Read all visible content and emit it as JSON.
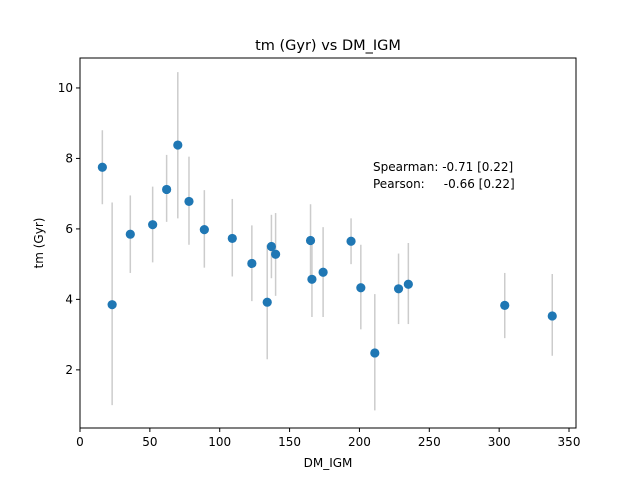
{
  "chart_data": {
    "type": "scatter",
    "title": "tm (Gyr) vs DM_IGM",
    "xlabel": "DM_IGM",
    "ylabel": "tm (Gyr)",
    "xlim": [
      0,
      355
    ],
    "ylim": [
      0.35,
      10.85
    ],
    "xticks": [
      0,
      50,
      100,
      150,
      200,
      250,
      300,
      350
    ],
    "yticks": [
      2,
      4,
      6,
      8,
      10
    ],
    "grid": false,
    "legend": "none",
    "marker_color": "#1f77b4",
    "errorbar_color": "#cccccc",
    "annotation": {
      "line1": "Spearman: -0.71 [0.22]",
      "line2": "Pearson:     -0.66 [0.22]"
    },
    "points": [
      {
        "x": 16,
        "y": 7.75,
        "ylo": 6.7,
        "yhi": 8.8
      },
      {
        "x": 23,
        "y": 3.85,
        "ylo": 1.0,
        "yhi": 6.75
      },
      {
        "x": 36,
        "y": 5.85,
        "ylo": 4.75,
        "yhi": 6.95
      },
      {
        "x": 52,
        "y": 6.12,
        "ylo": 5.05,
        "yhi": 7.2
      },
      {
        "x": 62,
        "y": 7.12,
        "ylo": 6.2,
        "yhi": 8.1
      },
      {
        "x": 70,
        "y": 8.38,
        "ylo": 6.3,
        "yhi": 10.45
      },
      {
        "x": 78,
        "y": 6.78,
        "ylo": 5.55,
        "yhi": 8.05
      },
      {
        "x": 89,
        "y": 5.98,
        "ylo": 4.9,
        "yhi": 7.1
      },
      {
        "x": 109,
        "y": 5.73,
        "ylo": 4.65,
        "yhi": 6.85
      },
      {
        "x": 123,
        "y": 5.02,
        "ylo": 3.95,
        "yhi": 6.1
      },
      {
        "x": 134,
        "y": 3.92,
        "ylo": 2.3,
        "yhi": 5.55
      },
      {
        "x": 137,
        "y": 5.5,
        "ylo": 4.6,
        "yhi": 6.4
      },
      {
        "x": 140,
        "y": 5.28,
        "ylo": 4.1,
        "yhi": 6.45
      },
      {
        "x": 165,
        "y": 5.67,
        "ylo": 4.65,
        "yhi": 6.7
      },
      {
        "x": 166,
        "y": 4.57,
        "ylo": 3.5,
        "yhi": 5.65
      },
      {
        "x": 174,
        "y": 4.77,
        "ylo": 3.5,
        "yhi": 6.05
      },
      {
        "x": 194,
        "y": 5.65,
        "ylo": 5.0,
        "yhi": 6.3
      },
      {
        "x": 201,
        "y": 4.33,
        "ylo": 3.15,
        "yhi": 5.55
      },
      {
        "x": 211,
        "y": 2.48,
        "ylo": 0.85,
        "yhi": 4.15
      },
      {
        "x": 228,
        "y": 4.3,
        "ylo": 3.3,
        "yhi": 5.3
      },
      {
        "x": 235,
        "y": 4.43,
        "ylo": 3.3,
        "yhi": 5.6
      },
      {
        "x": 304,
        "y": 3.83,
        "ylo": 2.9,
        "yhi": 4.75
      },
      {
        "x": 338,
        "y": 3.53,
        "ylo": 2.4,
        "yhi": 4.72
      }
    ]
  }
}
